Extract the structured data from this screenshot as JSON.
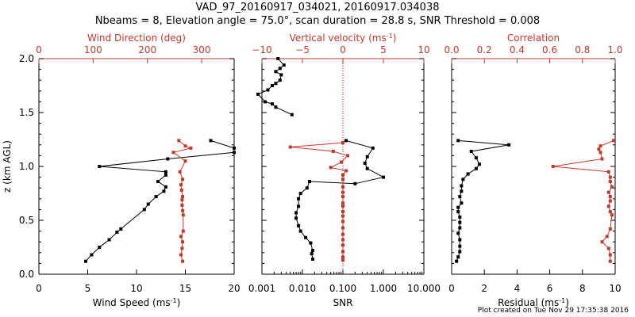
{
  "title_line1": "VAD_97_20160917_034021, 20160917.034038",
  "title_line2": "Nbeams = 8, Elevation angle = 75.0°, scan duration = 28.8 s, SNR Threshold = 0.008",
  "footer": "Plot created on Tue Nov 29 17:35:38 2016",
  "colors": {
    "axis": "#000000",
    "series_primary": "#000000",
    "series_secondary": "#c0392b",
    "ref_line": "#cc0000"
  },
  "chart_data": [
    {
      "type": "line",
      "ylabel": "z (km AGL)",
      "ylim": [
        0,
        2.0
      ],
      "yticks": [
        "0.0",
        "0.5",
        "1.0",
        "1.5",
        "2.0"
      ],
      "bottom_axis": {
        "label": "Wind Speed (ms",
        "label_sup": "-1",
        "label_end": ")",
        "range": [
          0,
          20
        ],
        "ticks": [
          {
            "v": 0,
            "t": "0"
          },
          {
            "v": 5,
            "t": "5"
          },
          {
            "v": 10,
            "t": "10"
          },
          {
            "v": 15,
            "t": "15"
          },
          {
            "v": 20,
            "t": "20"
          }
        ]
      },
      "top_axis": {
        "label": "Wind Direction (deg)",
        "range": [
          0,
          360
        ],
        "ticks": [
          {
            "v": 0,
            "t": "0"
          },
          {
            "v": 100,
            "t": "100"
          },
          {
            "v": 200,
            "t": "200"
          },
          {
            "v": 300,
            "t": "300"
          }
        ]
      },
      "series": [
        {
          "axis": "bottom",
          "color": "#000000",
          "x": [
            4.8,
            5.4,
            6.2,
            7.2,
            8.0,
            8.4,
            10.8,
            11.2,
            12.0,
            12.8,
            13.0,
            12.2,
            13.0,
            13.0,
            6.2,
            13.2,
            20,
            20,
            17.6
          ],
          "y": [
            0.12,
            0.18,
            0.25,
            0.32,
            0.39,
            0.42,
            0.6,
            0.65,
            0.72,
            0.77,
            0.81,
            0.86,
            0.92,
            0.95,
            1.0,
            1.07,
            1.13,
            1.17,
            1.24
          ]
        },
        {
          "axis": "top",
          "color": "#c0392b",
          "x": [
            265,
            262,
            264,
            265,
            262,
            266,
            266,
            265,
            264,
            264,
            265,
            263,
            262,
            265,
            260,
            270,
            248,
            280,
            270,
            258
          ],
          "y": [
            0.12,
            0.18,
            0.24,
            0.3,
            0.35,
            0.4,
            0.55,
            0.59,
            0.64,
            0.69,
            0.72,
            0.78,
            0.83,
            0.88,
            0.95,
            1.05,
            1.13,
            1.17,
            1.19,
            1.24
          ]
        }
      ]
    },
    {
      "type": "line",
      "ylim": [
        0,
        2.0
      ],
      "bottom_axis": {
        "label": "SNR",
        "log": true,
        "range": [
          0.001,
          10
        ],
        "ticks": [
          {
            "v": 0.001,
            "t": "0.001"
          },
          {
            "v": 0.01,
            "t": "0.010"
          },
          {
            "v": 0.1,
            "t": "0.100"
          },
          {
            "v": 1,
            "t": "1.000"
          },
          {
            "v": 10,
            "t": "10.000"
          }
        ]
      },
      "top_axis": {
        "label": "Vertical velocity (ms",
        "label_sup": "-1",
        "label_end": ")",
        "range": [
          -10,
          10
        ],
        "ticks": [
          {
            "v": -10,
            "t": "−10"
          },
          {
            "v": -5,
            "t": "−5"
          },
          {
            "v": 0,
            "t": "0"
          },
          {
            "v": 5,
            "t": "5"
          },
          {
            "v": 10,
            "t": "10"
          }
        ]
      },
      "reference_line": {
        "axis": "top",
        "value": 0
      },
      "series": [
        {
          "axis": "bottom",
          "color": "#000000",
          "x": [
            0.018,
            0.017,
            0.018,
            0.016,
            0.012,
            0.009,
            0.008,
            0.007,
            0.007,
            0.008,
            0.008,
            0.009,
            0.013,
            0.015,
            0.2,
            1.0,
            0.4,
            0.35,
            0.4,
            0.55,
            0.12
          ],
          "y": [
            0.14,
            0.19,
            0.22,
            0.29,
            0.34,
            0.4,
            0.45,
            0.52,
            0.57,
            0.63,
            0.7,
            0.75,
            0.8,
            0.86,
            0.84,
            0.9,
            0.98,
            1.03,
            1.09,
            1.17,
            1.24
          ]
        },
        {
          "axis": "bottom",
          "color": "#000000",
          "x": [
            0.0055,
            0.0022,
            0.0018,
            0.0012,
            0.0008,
            0.0014,
            0.0018,
            0.0022,
            0.0028,
            0.003,
            0.0022,
            0.0028,
            0.0035,
            0.0025
          ],
          "y": [
            1.48,
            1.55,
            1.58,
            1.6,
            1.67,
            1.71,
            1.75,
            1.77,
            1.8,
            1.85,
            1.88,
            1.91,
            1.94,
            2.0
          ]
        },
        {
          "axis": "top",
          "color": "#c0392b",
          "x": [
            0,
            0,
            0,
            0,
            0,
            0,
            0,
            0,
            0,
            0,
            0,
            0,
            0,
            0,
            0,
            0,
            0,
            0.4,
            -1.5,
            -0.2,
            0.6,
            -1.2,
            -6.5,
            0
          ],
          "y": [
            0.13,
            0.16,
            0.21,
            0.27,
            0.32,
            0.37,
            0.43,
            0.49,
            0.54,
            0.58,
            0.63,
            0.66,
            0.72,
            0.76,
            0.81,
            0.88,
            0.92,
            0.96,
            0.99,
            1.04,
            1.1,
            1.14,
            1.18,
            1.22
          ]
        }
      ]
    },
    {
      "type": "line",
      "ylim": [
        0,
        2.0
      ],
      "bottom_axis": {
        "label": "Residual (ms",
        "label_sup": "-1",
        "label_end": ")",
        "range": [
          0,
          10
        ],
        "ticks": [
          {
            "v": 0,
            "t": "0"
          },
          {
            "v": 2,
            "t": "2"
          },
          {
            "v": 4,
            "t": "4"
          },
          {
            "v": 6,
            "t": "6"
          },
          {
            "v": 8,
            "t": "8"
          },
          {
            "v": 10,
            "t": "10"
          }
        ]
      },
      "top_axis": {
        "label": "Correlation",
        "range": [
          0,
          1.0
        ],
        "ticks": [
          {
            "v": 0,
            "t": "0.0"
          },
          {
            "v": 0.2,
            "t": "0.2"
          },
          {
            "v": 0.4,
            "t": "0.4"
          },
          {
            "v": 0.6,
            "t": "0.6"
          },
          {
            "v": 0.8,
            "t": "0.8"
          },
          {
            "v": 1.0,
            "t": "1.0"
          }
        ]
      },
      "series": [
        {
          "axis": "bottom",
          "color": "#000000",
          "x": [
            0.3,
            0.4,
            0.5,
            0.5,
            0.5,
            0.4,
            0.5,
            0.5,
            0.5,
            0.4,
            0.4,
            0.6,
            0.5,
            0.6,
            0.6,
            0.7,
            1.0,
            1.5,
            1.7,
            1.5,
            1.2,
            3.5,
            0.4
          ],
          "y": [
            0.12,
            0.16,
            0.21,
            0.26,
            0.32,
            0.38,
            0.43,
            0.48,
            0.53,
            0.58,
            0.62,
            0.66,
            0.72,
            0.77,
            0.82,
            0.88,
            0.93,
            0.98,
            1.02,
            1.08,
            1.14,
            1.2,
            1.24
          ]
        },
        {
          "axis": "top",
          "color": "#c0392b",
          "x": [
            0.97,
            0.97,
            0.96,
            0.92,
            0.95,
            0.97,
            0.98,
            0.97,
            0.96,
            0.97,
            0.97,
            0.96,
            0.98,
            0.97,
            0.97,
            0.96,
            0.62,
            0.92,
            0.91,
            0.9,
            0.91,
            0.99
          ],
          "y": [
            0.12,
            0.18,
            0.24,
            0.3,
            0.35,
            0.42,
            0.55,
            0.58,
            0.63,
            0.68,
            0.72,
            0.76,
            0.81,
            0.86,
            0.9,
            0.95,
            1.0,
            1.07,
            1.13,
            1.16,
            1.19,
            1.24
          ]
        }
      ]
    }
  ]
}
